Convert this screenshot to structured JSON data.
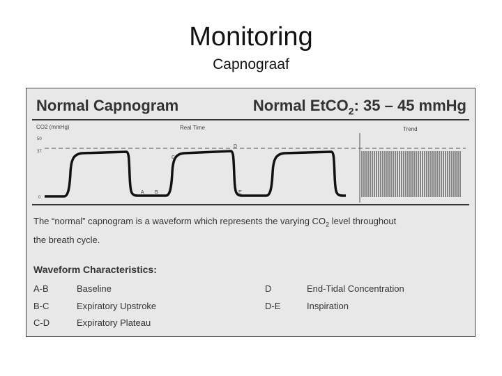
{
  "slide": {
    "title": "Monitoring",
    "subtitle": "Capnograaf"
  },
  "figure": {
    "heading_left": "Normal Capnogram",
    "heading_right_prefix": "Normal EtCO",
    "heading_right_sub": "2",
    "heading_right_suffix": ": 35 – 45 mmHg",
    "chart": {
      "y_axis_label": "CO2 (mmHg)",
      "y_ticks": [
        "50",
        "37",
        "0"
      ],
      "realtime_label": "Real Time",
      "trend_label": "Trend",
      "points": {
        "A": "A",
        "B": "B",
        "C": "C",
        "D": "D",
        "E": "E"
      }
    },
    "description_line1_a": "The “normal” capnogram is a waveform which represents the varying CO",
    "description_sub": "2",
    "description_line1_b": " level throughout",
    "description_line2": "the breath cycle.",
    "characteristics_heading": "Waveform Characteristics:",
    "characteristics": [
      {
        "code": "A-B",
        "label": "Baseline"
      },
      {
        "code": "B-C",
        "label": "Expiratory Upstroke"
      },
      {
        "code": "C-D",
        "label": "Expiratory Plateau"
      },
      {
        "code": "D",
        "label": "End-Tidal Concentration"
      },
      {
        "code": "D-E",
        "label": "Inspiration"
      }
    ]
  },
  "colors": {
    "panel": "#e8e8e8",
    "line": "#111111",
    "text": "#333333"
  }
}
